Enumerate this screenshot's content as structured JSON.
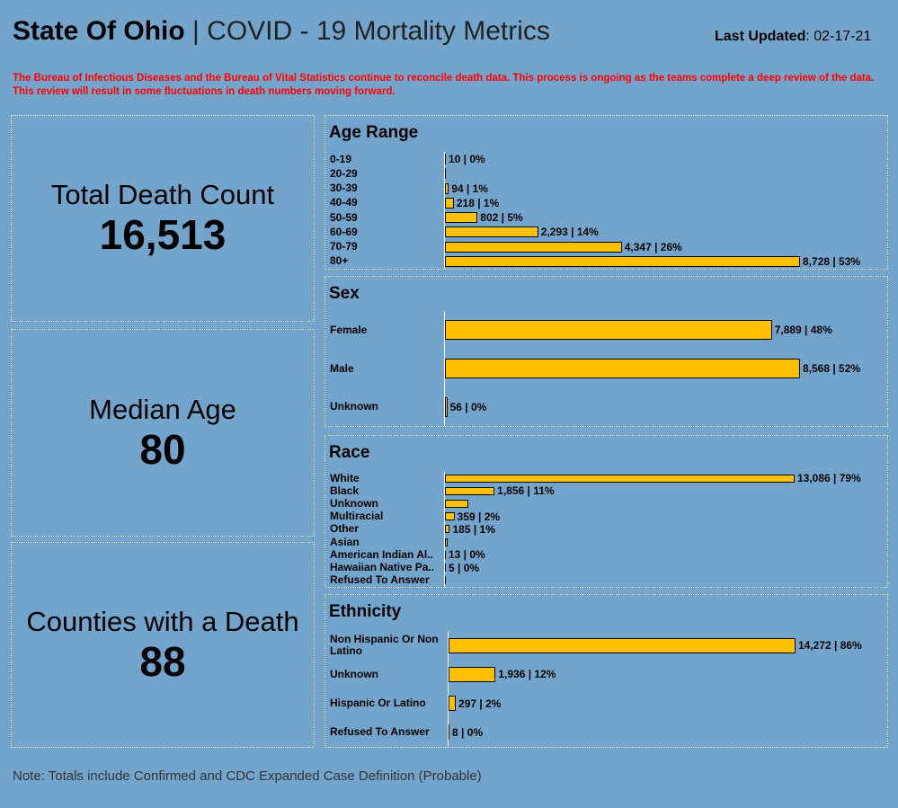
{
  "header": {
    "title_bold": "State Of Ohio",
    "title_rest": " | COVID - 19 Mortality Metrics",
    "updated_label": "Last Updated",
    "updated_value": ": 02-17-21"
  },
  "notice": "The Bureau of Infectious Diseases and the Bureau of Vital Statistics continue to reconcile death data. This process is ongoing as the teams complete a deep review of the data. This review will result in some fluctuations in death numbers moving forward.",
  "kpis": [
    {
      "label": "Total Death Count",
      "value": "16,513"
    },
    {
      "label": "Median Age",
      "value": "80"
    },
    {
      "label": "Counties with a Death",
      "value": "88"
    }
  ],
  "colors": {
    "background": "#73a5cc",
    "bar": "#ffc000",
    "notice": "#ff0000"
  },
  "chart_data": [
    {
      "type": "bar",
      "orientation": "horizontal",
      "title": "Age Range",
      "categories": [
        "0-19",
        "20-29",
        "30-39",
        "40-49",
        "50-59",
        "60-69",
        "70-79",
        "80+"
      ],
      "values": [
        10,
        21,
        94,
        218,
        802,
        2293,
        4347,
        8728
      ],
      "data_labels": [
        "10 | 0%",
        "",
        "94 | 1%",
        "218 | 1%",
        "802 | 5%",
        "2,293 | 14%",
        "4,347 | 26%",
        "8,728 | 53%"
      ]
    },
    {
      "type": "bar",
      "orientation": "horizontal",
      "title": "Sex",
      "categories": [
        "Female",
        "Male",
        "Unknown"
      ],
      "values": [
        7889,
        8568,
        56
      ],
      "data_labels": [
        "7,889 | 48%",
        "8,568 | 52%",
        "56 | 0%"
      ]
    },
    {
      "type": "bar",
      "orientation": "horizontal",
      "title": "Race",
      "categories": [
        "White",
        "Black",
        "Unknown",
        "Multiracial",
        "Other",
        "Asian",
        "American Indian Al..",
        "Hawaiian Native Pa..",
        "Refused To Answer"
      ],
      "values": [
        13086,
        1856,
        880,
        359,
        185,
        100,
        13,
        5,
        3
      ],
      "data_labels": [
        "13,086 | 79%",
        "1,856 | 11%",
        "",
        "359 | 2%",
        "185 | 1%",
        "",
        "13 | 0%",
        "5 | 0%",
        ""
      ]
    },
    {
      "type": "bar",
      "orientation": "horizontal",
      "title": "Ethnicity",
      "categories": [
        "Non Hispanic Or Non Latino",
        "Unknown",
        "Hispanic Or Latino",
        "Refused To Answer"
      ],
      "values": [
        14272,
        1936,
        297,
        8
      ],
      "data_labels": [
        "14,272 | 86%",
        "1,936 | 12%",
        "297 | 2%",
        "8 | 0%"
      ]
    }
  ],
  "footer": {
    "note": "Note: Totals include Confirmed and CDC Expanded Case Definition (Probable)"
  }
}
